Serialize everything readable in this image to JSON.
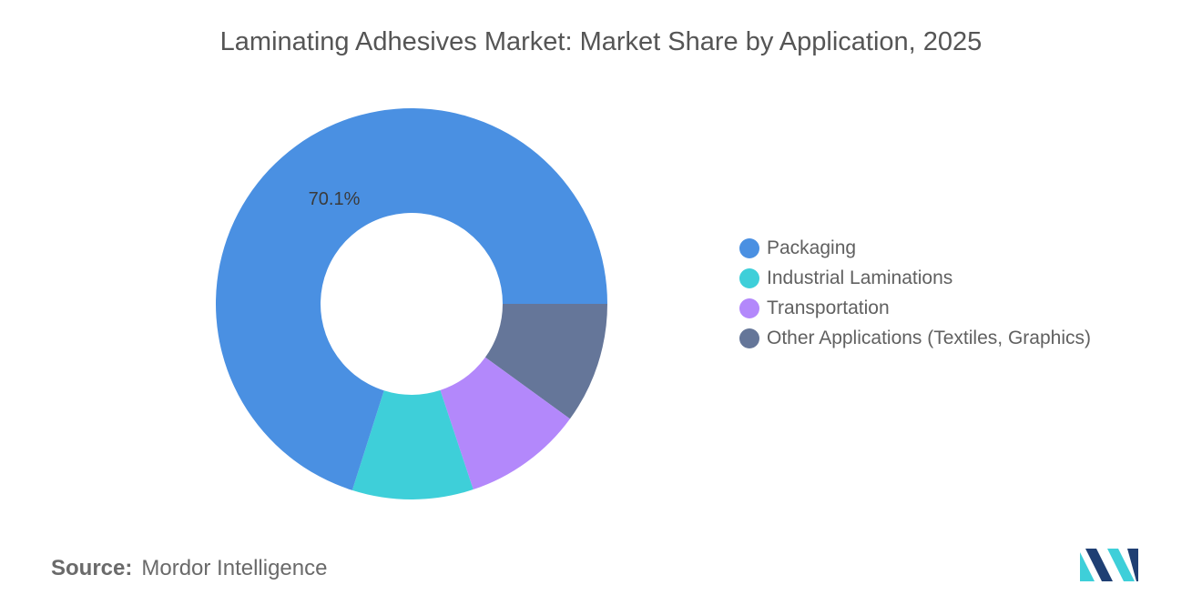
{
  "chart_data": {
    "type": "pie",
    "title": "Laminating Adhesives Market: Market Share by Application, 2025",
    "categories": [
      "Packaging",
      "Industrial Laminations",
      "Transportation",
      "Other Applications (Textiles, Graphics)"
    ],
    "values": [
      70.1,
      10.0,
      9.9,
      10.0
    ],
    "colors": [
      "#4a90e2",
      "#3ecfd9",
      "#b388fb",
      "#657699"
    ],
    "data_labels": [
      {
        "category": "Packaging",
        "text": "70.1%"
      }
    ],
    "legend_position": "right",
    "donut": true
  },
  "source": {
    "label": "Source:",
    "text": "Mordor Intelligence"
  },
  "logo": {
    "icon": "mordor-intelligence-logo",
    "colors": [
      "#1f3f73",
      "#3ecfd9"
    ]
  }
}
